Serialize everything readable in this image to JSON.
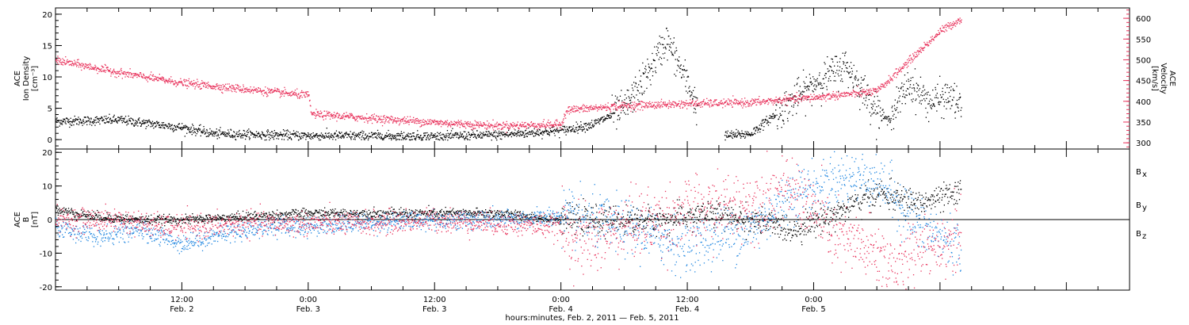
{
  "chart_data": [
    {
      "type": "scatter",
      "panel": "top",
      "left_axis_label_lines": [
        "ACE",
        "Ion Density",
        "[cm⁻³]"
      ],
      "right_axis_label_lines": [
        "ACE",
        "Velocity",
        "[km/s]"
      ],
      "left_ylim": [
        -1.5,
        21
      ],
      "left_yticks": [
        0,
        5,
        10,
        15,
        20
      ],
      "right_ylim": [
        285,
        625
      ],
      "right_yticks": [
        300,
        350,
        400,
        450,
        500,
        550,
        600
      ],
      "series": [
        {
          "axis": "left",
          "color": "#000000",
          "keypoints_hours": [
            [
              0,
              3
            ],
            [
              6,
              3.2
            ],
            [
              12,
              2
            ],
            [
              15,
              1
            ],
            [
              24,
              0.7
            ],
            [
              36,
              0.6
            ],
            [
              42,
              0.8
            ],
            [
              48,
              1.5
            ],
            [
              51,
              2.5
            ],
            [
              54,
              5
            ],
            [
              56,
              10
            ],
            [
              58,
              16
            ],
            [
              60,
              9
            ],
            [
              62,
              0.5
            ],
            [
              66,
              1
            ],
            [
              69,
              5
            ],
            [
              72,
              9
            ],
            [
              75,
              12
            ],
            [
              77,
              7
            ],
            [
              79,
              3
            ],
            [
              81,
              9
            ],
            [
              83,
              6
            ],
            [
              85,
              7
            ],
            [
              86,
              5
            ]
          ],
          "gaps_hours": [
            [
              61,
              63.5
            ]
          ],
          "noise": 1.5
        },
        {
          "axis": "right",
          "color": "#e8305a",
          "keypoints_hours": [
            [
              0,
              500
            ],
            [
              6,
              470
            ],
            [
              12,
              445
            ],
            [
              18,
              430
            ],
            [
              24,
              415
            ],
            [
              24.3,
              370
            ],
            [
              30,
              360
            ],
            [
              36,
              350
            ],
            [
              42,
              342
            ],
            [
              48,
              345
            ],
            [
              48.5,
              380
            ],
            [
              54,
              390
            ],
            [
              60,
              395
            ],
            [
              66,
              398
            ],
            [
              72,
              410
            ],
            [
              78,
              425
            ],
            [
              84,
              570
            ],
            [
              86,
              600
            ]
          ],
          "noise": 8
        }
      ]
    },
    {
      "type": "scatter",
      "panel": "bottom",
      "left_axis_label_lines": [
        "ACE",
        "B",
        "[nT]"
      ],
      "ylim": [
        -21,
        21
      ],
      "yticks": [
        -20,
        -10,
        0,
        10,
        20
      ],
      "zero_line": true,
      "series": [
        {
          "name": "Bx",
          "color": "#000000",
          "keypoints_hours": [
            [
              0,
              3
            ],
            [
              4,
              1
            ],
            [
              8,
              0
            ],
            [
              12,
              0
            ],
            [
              18,
              1
            ],
            [
              24,
              2
            ],
            [
              24.5,
              2
            ],
            [
              30,
              2
            ],
            [
              36,
              2
            ],
            [
              42,
              2
            ],
            [
              48,
              0
            ],
            [
              54,
              0
            ],
            [
              58,
              0
            ],
            [
              62,
              2
            ],
            [
              66,
              0
            ],
            [
              70,
              -3
            ],
            [
              74,
              2
            ],
            [
              78,
              8
            ],
            [
              82,
              5
            ],
            [
              86,
              8
            ]
          ],
          "noise": 2
        },
        {
          "name": "By",
          "color": "#1f86e0",
          "keypoints_hours": [
            [
              0,
              -2
            ],
            [
              4,
              -5
            ],
            [
              8,
              -3
            ],
            [
              12,
              -7
            ],
            [
              16,
              -4
            ],
            [
              20,
              -2
            ],
            [
              24,
              -2
            ],
            [
              28,
              -1
            ],
            [
              36,
              0
            ],
            [
              42,
              0
            ],
            [
              48,
              1
            ],
            [
              54,
              -2
            ],
            [
              58,
              -6
            ],
            [
              60,
              -8
            ],
            [
              64,
              -4
            ],
            [
              66,
              -3
            ],
            [
              70,
              8
            ],
            [
              74,
              12
            ],
            [
              78,
              13
            ],
            [
              82,
              -2
            ],
            [
              86,
              -8
            ]
          ],
          "noise": 4
        },
        {
          "name": "Bz",
          "color": "#e8305a",
          "keypoints_hours": [
            [
              0,
              0
            ],
            [
              6,
              0
            ],
            [
              10,
              -2
            ],
            [
              14,
              -2
            ],
            [
              18,
              -1
            ],
            [
              24,
              -1
            ],
            [
              30,
              -1
            ],
            [
              36,
              0
            ],
            [
              42,
              -1
            ],
            [
              48,
              -2
            ],
            [
              50,
              -7
            ],
            [
              54,
              -2
            ],
            [
              60,
              2
            ],
            [
              66,
              5
            ],
            [
              70,
              10
            ],
            [
              74,
              -5
            ],
            [
              78,
              -10
            ],
            [
              80,
              -15
            ],
            [
              82,
              -8
            ],
            [
              86,
              -5
            ]
          ],
          "noise": 5
        }
      ],
      "legend_labels": [
        {
          "main": "B",
          "sub": "x",
          "color": "#000000"
        },
        {
          "main": "B",
          "sub": "y",
          "color": "#1f86e0"
        },
        {
          "main": "B",
          "sub": "z",
          "color": "#e8305a"
        }
      ]
    }
  ],
  "x_axis": {
    "range_hours": [
      0,
      102
    ],
    "data_start_hours": 0,
    "data_end_hours": 86,
    "ticks": [
      {
        "hour": 12,
        "top": "12:00",
        "bottom": "Feb. 2"
      },
      {
        "hour": 24,
        "top": "0:00",
        "bottom": "Feb. 3"
      },
      {
        "hour": 36,
        "top": "12:00",
        "bottom": "Feb. 3"
      },
      {
        "hour": 48,
        "top": "0:00",
        "bottom": "Feb. 4"
      },
      {
        "hour": 60,
        "top": "12:00",
        "bottom": "Feb. 4"
      },
      {
        "hour": 72,
        "top": "0:00",
        "bottom": "Feb. 5"
      }
    ],
    "xlabel": "hours:minutes, Feb. 2, 2011 — Feb. 5, 2011"
  }
}
